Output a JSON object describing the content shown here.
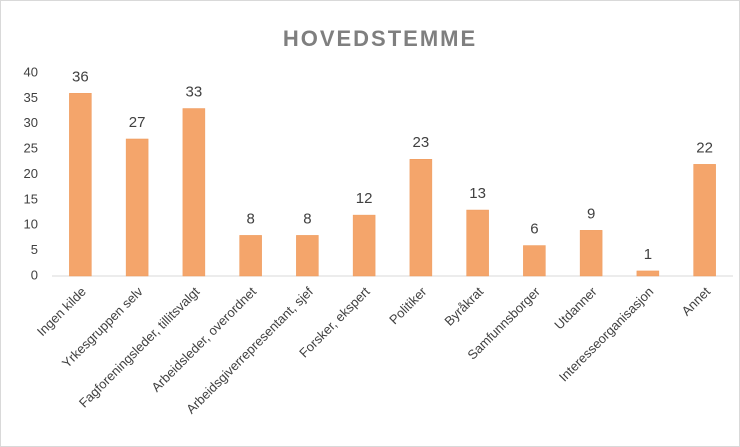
{
  "chart_data": {
    "type": "bar",
    "title": "HOVEDSTEMME",
    "categories": [
      "Ingen kilde",
      "Yrkesgruppen selv",
      "Fagforeningsleder, tillitsvalgt",
      "Arbeidsleder, overordnet",
      "Arbeidsgiverrepresentant, sjef",
      "Forsker, ekspert",
      "Politiker",
      "Byråkrat",
      "Samfunnsborger",
      "Utdanner",
      "Interesseorganisasjon",
      "Annet"
    ],
    "values": [
      36,
      27,
      33,
      8,
      8,
      12,
      23,
      13,
      6,
      9,
      1,
      22
    ],
    "color": "#f4a56b",
    "ylim": [
      0,
      40
    ],
    "yticks": [
      0,
      5,
      10,
      15,
      20,
      25,
      30,
      35,
      40
    ],
    "grid": false
  }
}
